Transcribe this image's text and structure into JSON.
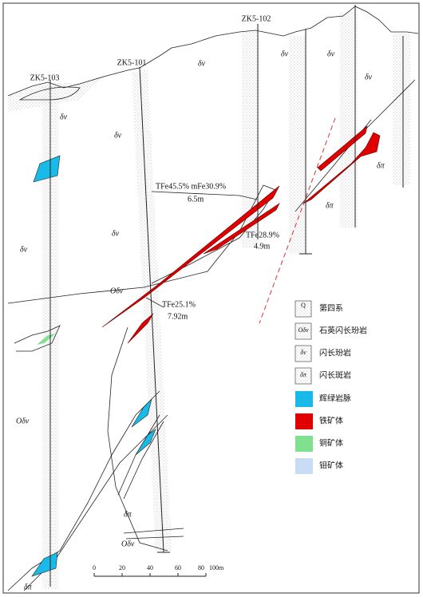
{
  "drill_holes": [
    "ZK5-103",
    "ZK5-101",
    "ZK5-102"
  ],
  "rock_labels": [
    "δv",
    "δv",
    "δv",
    "δv",
    "δv",
    "δv",
    "δv",
    "δv",
    "Oδv",
    "Oδv",
    "δπ",
    "δπ",
    "δπ",
    "Oδv",
    "δπ"
  ],
  "ore_annotations": [
    {
      "grade": "TFe45.5%  mFe30.9%",
      "thickness": "6.5m"
    },
    {
      "grade": "TFe28.9%",
      "thickness": "4.9m"
    },
    {
      "grade": "TFe25.1%",
      "thickness": "7.92m"
    }
  ],
  "legend": [
    {
      "symbol": "Q",
      "label": "第四系"
    },
    {
      "symbol": "Oδv",
      "label": "石英闪长玢岩"
    },
    {
      "symbol": "δv",
      "label": "闪长玢岩"
    },
    {
      "symbol": "δπ",
      "label": "闪长斑岩"
    },
    {
      "label": "辉绿岩脉"
    },
    {
      "label": "铁矿体"
    },
    {
      "label": "铜矿体"
    },
    {
      "label": "钼矿体"
    }
  ],
  "scale": [
    "0",
    "20",
    "40",
    "60",
    "80",
    "100m"
  ]
}
